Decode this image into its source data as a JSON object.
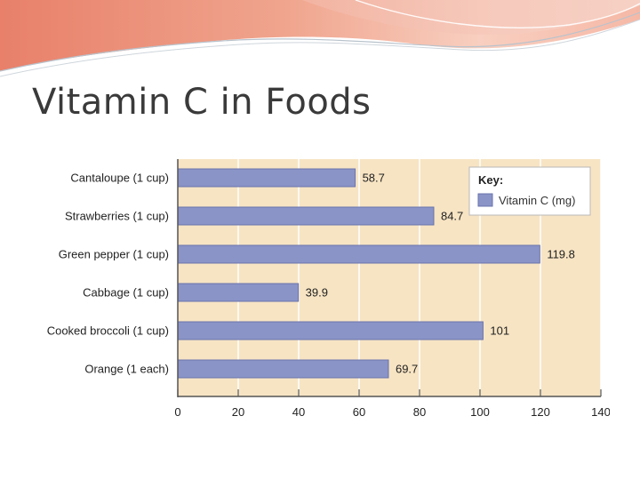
{
  "slide": {
    "title": "Vitamin C in Foods"
  },
  "colors": {
    "bar": "#8a94c7",
    "bar_stroke": "#6a73ac",
    "plot_bg": "#f7e4c3",
    "grid": "#ffffff",
    "axis": "#555555"
  },
  "chart_data": {
    "type": "bar",
    "orientation": "horizontal",
    "categories": [
      "Cantaloupe (1 cup)",
      "Strawberries (1 cup)",
      "Green pepper (1 cup)",
      "Cabbage (1 cup)",
      "Cooked broccoli (1 cup)",
      "Orange (1 each)"
    ],
    "values": [
      58.7,
      84.7,
      119.8,
      39.9,
      101,
      69.7
    ],
    "value_labels": [
      "58.7",
      "84.7",
      "119.8",
      "39.9",
      "101",
      "69.7"
    ],
    "series": [
      {
        "name": "Vitamin C (mg)",
        "values": [
          58.7,
          84.7,
          119.8,
          39.9,
          101,
          69.7
        ]
      }
    ],
    "xlim": [
      0,
      140
    ],
    "xticks": [
      0,
      20,
      40,
      60,
      80,
      100,
      120,
      140
    ],
    "grid": true,
    "legend": {
      "title": "Key:",
      "position": "top-right"
    }
  }
}
